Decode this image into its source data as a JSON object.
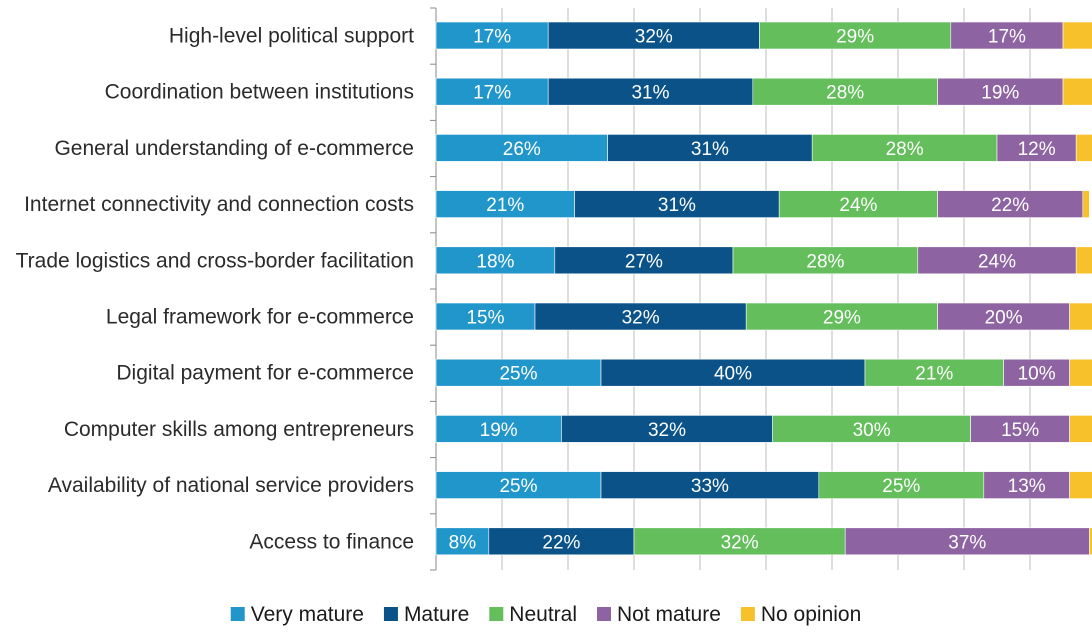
{
  "chart_data": {
    "type": "bar",
    "orientation": "horizontal",
    "stacked": true,
    "categories": [
      "High-level political support",
      "Coordination between institutions",
      "General understanding of e-commerce",
      "Internet connectivity and connection costs",
      "Trade logistics and cross-border facilitation",
      "Legal framework for e-commerce",
      "Digital payment for e-commerce",
      "Computer skills among entrepreneurs",
      "Availability of national service providers",
      "Access to finance"
    ],
    "series": [
      {
        "name": "Very mature",
        "color": "#2196cb",
        "values": [
          17,
          17,
          26,
          21,
          18,
          15,
          25,
          19,
          25,
          8
        ]
      },
      {
        "name": "Mature",
        "color": "#0a5288",
        "values": [
          32,
          31,
          31,
          31,
          27,
          32,
          40,
          32,
          33,
          22
        ]
      },
      {
        "name": "Neutral",
        "color": "#63be5b",
        "values": [
          29,
          28,
          28,
          24,
          28,
          29,
          21,
          30,
          25,
          32
        ]
      },
      {
        "name": "Not mature",
        "color": "#8d63a1",
        "values": [
          17,
          19,
          12,
          22,
          24,
          20,
          10,
          15,
          13,
          37
        ]
      },
      {
        "name": "No opinion",
        "color": "#f7c12c",
        "values": [
          5,
          5,
          3,
          1,
          3,
          4,
          4,
          4,
          4,
          1
        ]
      }
    ],
    "value_suffix": "%",
    "xlim": [
      0,
      100
    ],
    "grid": true,
    "legend_position": "bottom",
    "title": "",
    "xlabel": "",
    "ylabel": ""
  }
}
